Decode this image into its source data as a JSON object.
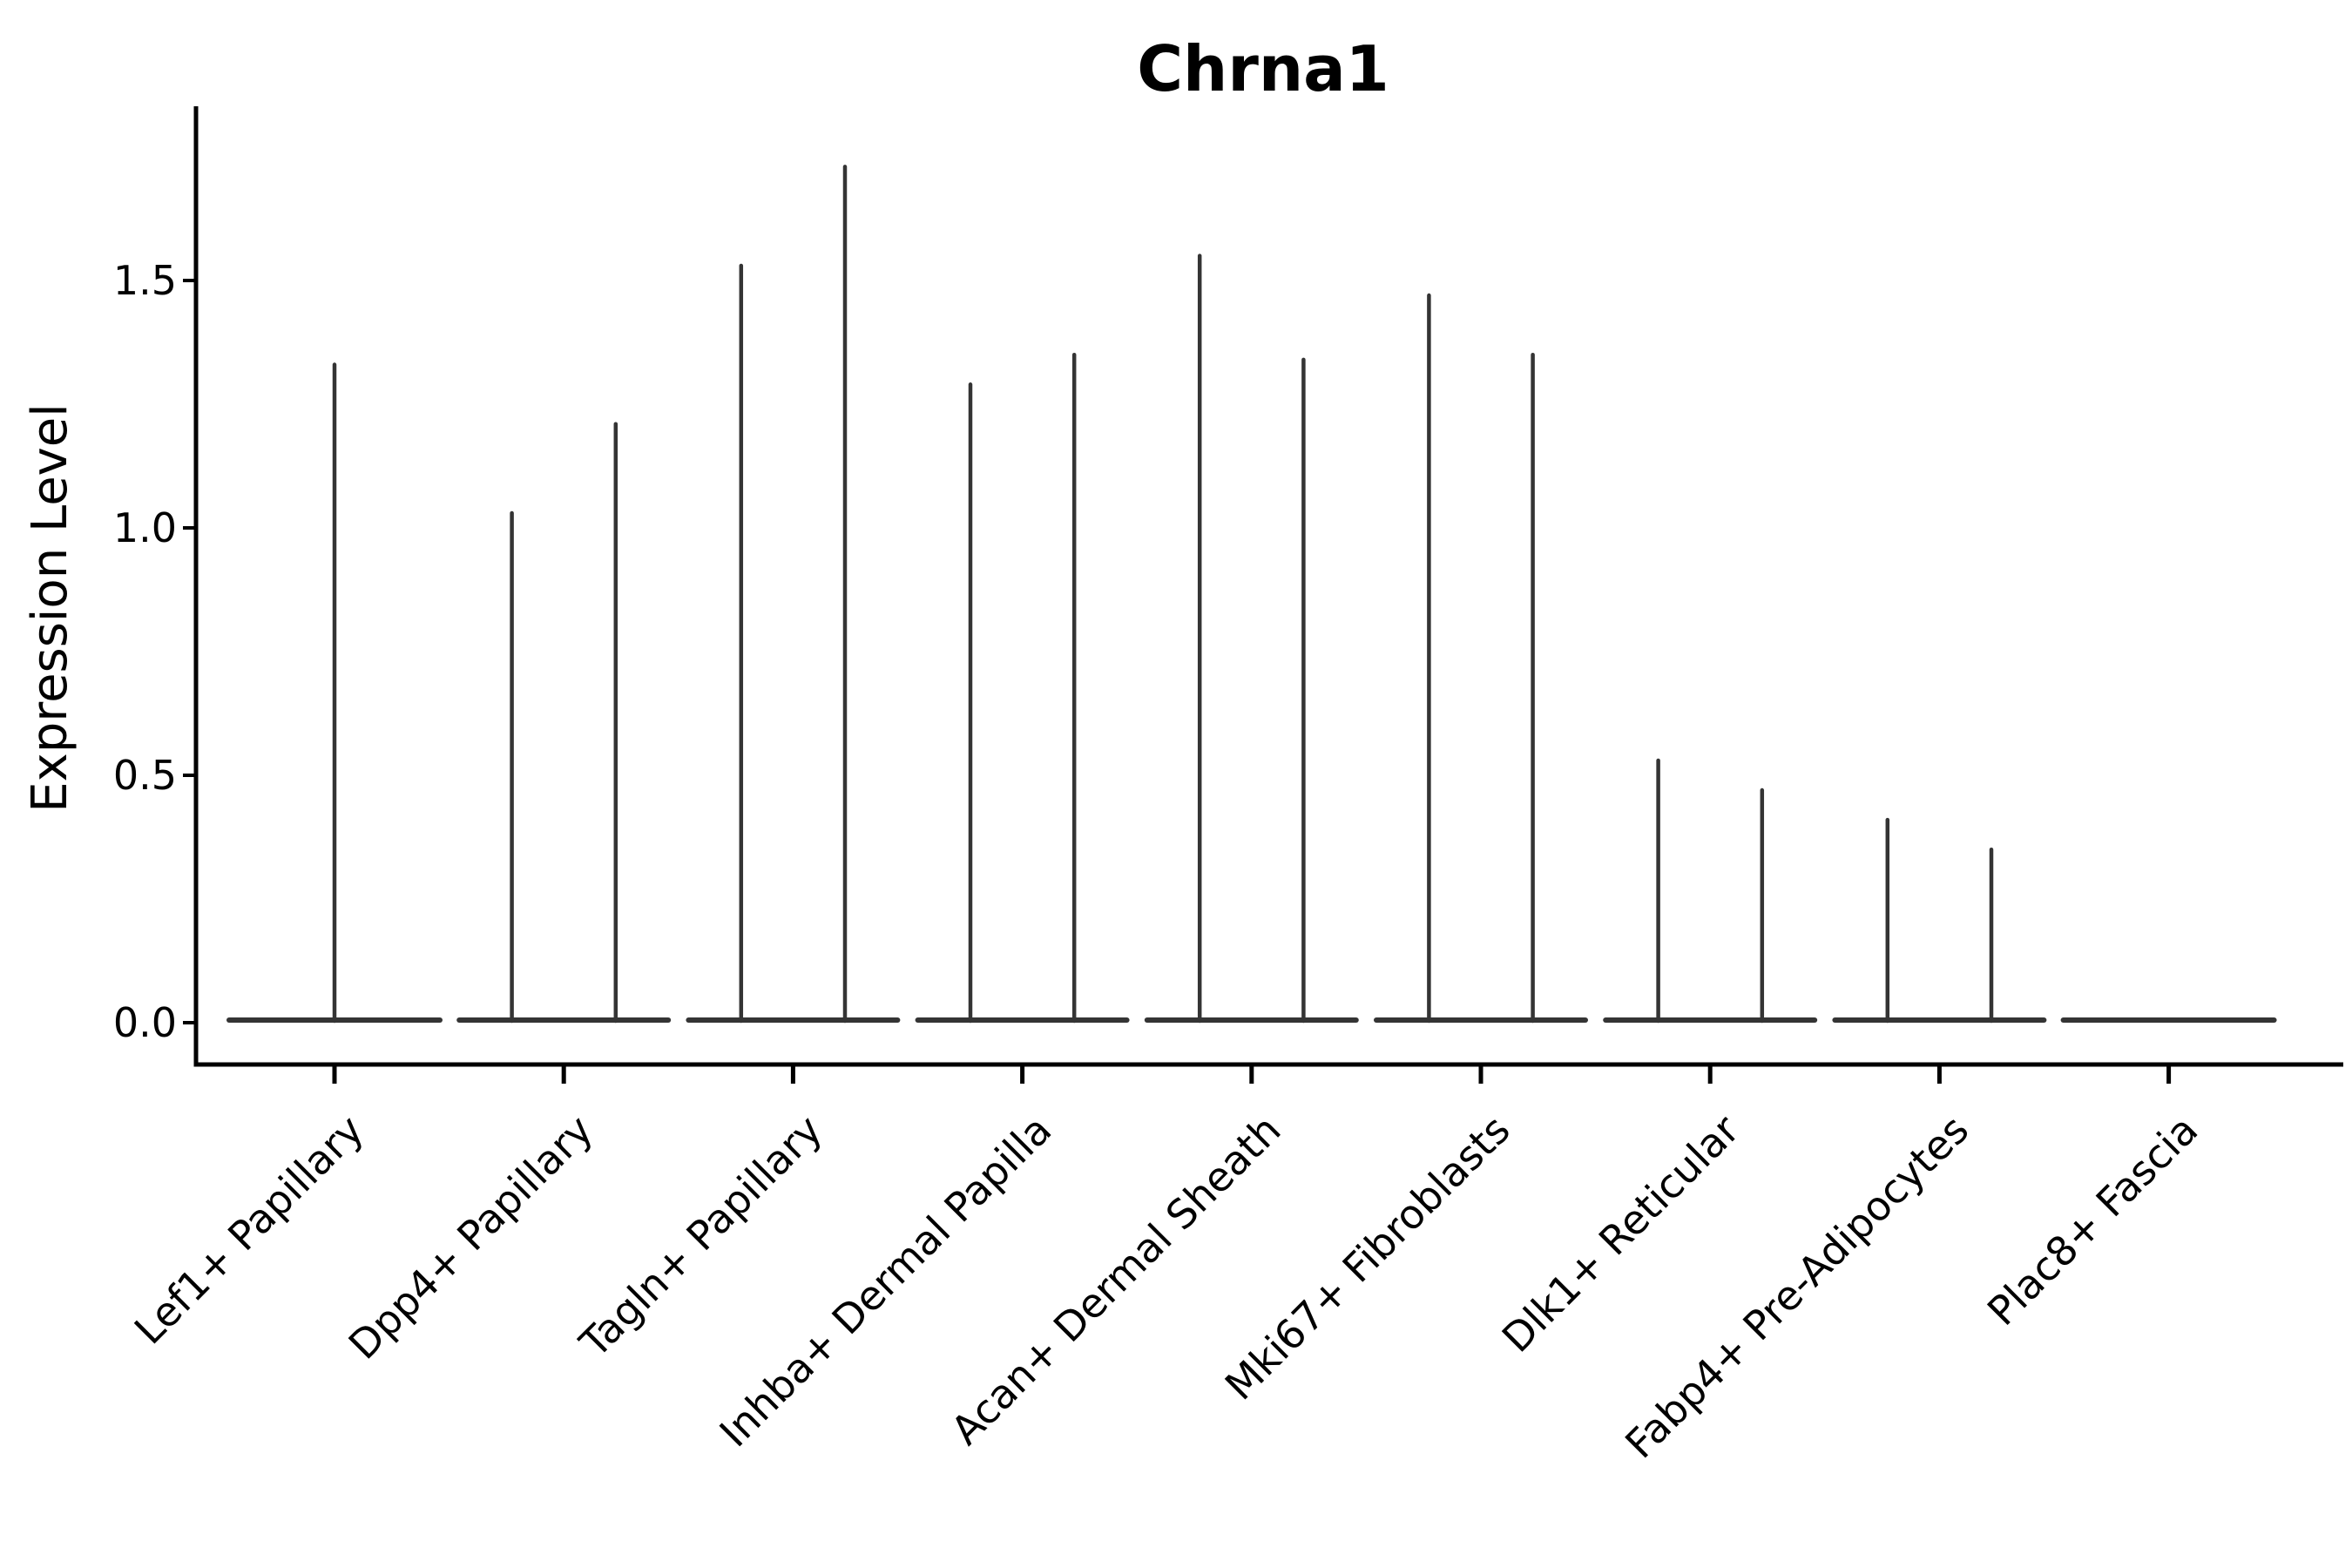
{
  "figure": {
    "background": "#ffffff",
    "axis_color": "#000000",
    "violin_color": "#343434",
    "text_color": "#000000"
  },
  "chart_data": {
    "type": "violin",
    "title": "Chrna1",
    "ylabel": "Expression Level",
    "xlabel": "",
    "ylim": [
      -0.085,
      1.852
    ],
    "yticks": [
      0.0,
      0.5,
      1.0,
      1.5
    ],
    "ytick_labels": [
      "0.0",
      "0.5",
      "1.0",
      "1.5"
    ],
    "grid": false,
    "legend": "none",
    "description": "Violin plot; expression concentrated at 0 so each violin collapses to a flat base at 0 with a thin spike up to its maximum expression value. Most categories show two side-by-side violins.",
    "categories": [
      "Lef1+ Papillary",
      "Dpp4+ Papillary",
      "Tagln+ Papillary",
      "Inhba+ Dermal Papilla",
      "Acan+ Dermal Sheath",
      "Mki67+ Fibroblasts",
      "Dlk1+ Reticular",
      "Fabp4+ Pre-Adipocytes",
      "Plac8+ Fascia"
    ],
    "series": [
      {
        "category": "Lef1+ Papillary",
        "violins": [
          {
            "min": 0.0,
            "max": 1.33
          }
        ]
      },
      {
        "category": "Dpp4+ Papillary",
        "violins": [
          {
            "min": 0.0,
            "max": 1.03
          },
          {
            "min": 0.0,
            "max": 1.21
          }
        ]
      },
      {
        "category": "Tagln+ Papillary",
        "violins": [
          {
            "min": 0.0,
            "max": 1.53
          },
          {
            "min": 0.0,
            "max": 1.73
          }
        ]
      },
      {
        "category": "Inhba+ Dermal Papilla",
        "violins": [
          {
            "min": 0.0,
            "max": 1.29
          },
          {
            "min": 0.0,
            "max": 1.35
          }
        ]
      },
      {
        "category": "Acan+ Dermal Sheath",
        "violins": [
          {
            "min": 0.0,
            "max": 1.55
          },
          {
            "min": 0.0,
            "max": 1.34
          }
        ]
      },
      {
        "category": "Mki67+ Fibroblasts",
        "violins": [
          {
            "min": 0.0,
            "max": 1.47
          },
          {
            "min": 0.0,
            "max": 1.35
          }
        ]
      },
      {
        "category": "Dlk1+ Reticular",
        "violins": [
          {
            "min": 0.0,
            "max": 0.53
          },
          {
            "min": 0.0,
            "max": 0.47
          }
        ]
      },
      {
        "category": "Fabp4+ Pre-Adipocytes",
        "violins": [
          {
            "min": 0.0,
            "max": 0.41
          },
          {
            "min": 0.0,
            "max": 0.35
          }
        ]
      },
      {
        "category": "Plac8+ Fascia",
        "violins": [
          {
            "min": 0.0,
            "max": 0.0
          }
        ]
      }
    ]
  }
}
